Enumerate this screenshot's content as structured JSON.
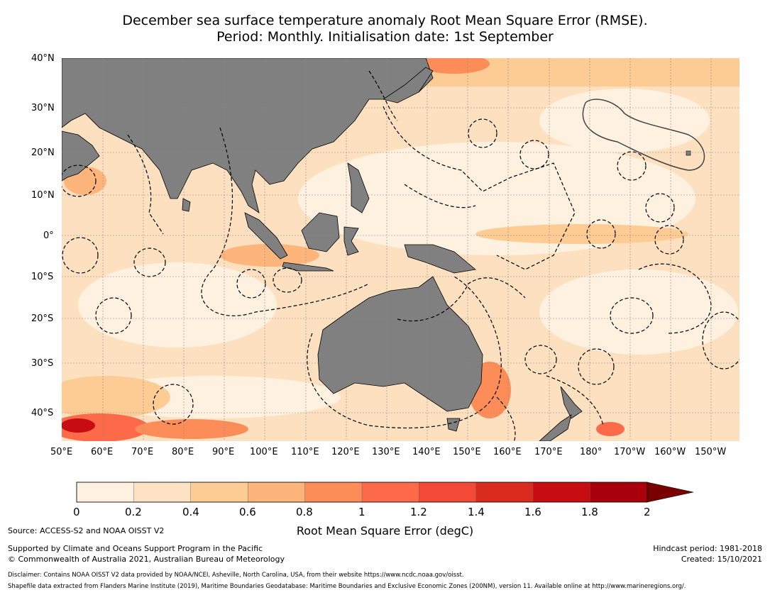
{
  "title": {
    "line1": "December sea surface temperature anomaly Root Mean Square Error (RMSE).",
    "line2": "Period: Monthly. Initialisation date: 1st September"
  },
  "map": {
    "lat_labels": [
      "40°N",
      "30°N",
      "20°N",
      "10°N",
      "0°",
      "10°S",
      "20°S",
      "30°S",
      "40°S"
    ],
    "lon_labels": [
      "50°E",
      "60°E",
      "70°E",
      "80°E",
      "90°E",
      "100°E",
      "110°E",
      "120°E",
      "130°E",
      "140°E",
      "150°E",
      "160°E",
      "170°E",
      "180°",
      "170°W",
      "160°W",
      "150°W"
    ],
    "land_color": "#808080",
    "ocean_base_color": "#fde0c0"
  },
  "colorbar": {
    "ticks": [
      "0",
      "0.2",
      "0.4",
      "0.6",
      "0.8",
      "1",
      "1.2",
      "1.4",
      "1.6",
      "1.8",
      "2"
    ],
    "colors": [
      "#fff1e0",
      "#fee2c4",
      "#fdcb94",
      "#fdb57c",
      "#fc8d59",
      "#fc6a49",
      "#f24a36",
      "#d92b1e",
      "#c70d12",
      "#a8000c",
      "#7a0000"
    ],
    "label": "Root Mean Square Error (degC)"
  },
  "footer": {
    "source": "Source: ACCESS-S2 and NOAA OISST V2",
    "support": "Supported by Climate and Oceans Support Program in the Pacific",
    "copyright": "© Commonwealth of Australia 2021, Australian Bureau of Meteorology",
    "hindcast": "Hindcast period: 1981-2018",
    "created": "Created: 15/10/2021",
    "disclaimer": "Disclaimer: Contains NOAA OISST V2 data provided by NOAA/NCEI, Asheville, North Carolina, USA, from their website https://www.ncdc.noaa.gov/oisst.",
    "shapefile": "Shapefile data extracted from Flanders Marine Institute (2019), Maritime Boundaries Geodatabase: Maritime Boundaries and Exclusive Economic Zones (200NM), version 11. Available online at http://www.marineregions.org/."
  }
}
